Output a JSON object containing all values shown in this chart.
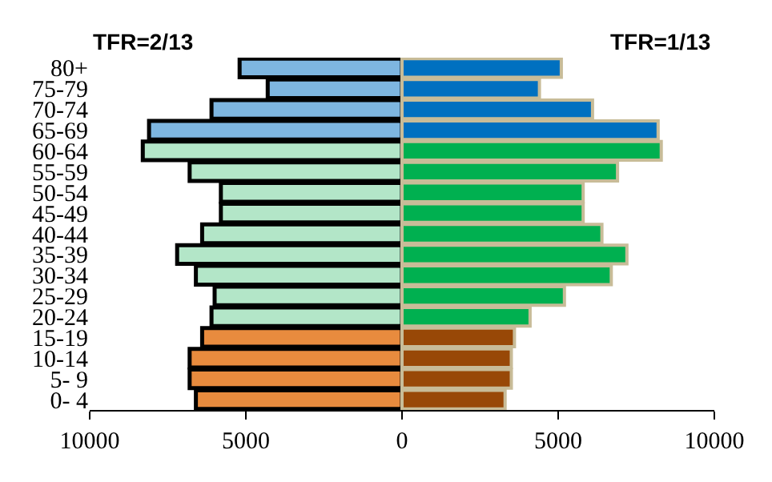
{
  "chart_data": {
    "type": "bar",
    "orientation": "horizontal",
    "stacked": true,
    "categories": [
      "80+",
      "75-79",
      "70-74",
      "65-69",
      "60-64",
      "55-59",
      "50-54",
      "45-49",
      "40-44",
      "35-39",
      "30-34",
      "25-29",
      "20-24",
      "15-19",
      "10-14",
      "5- 9",
      "0- 4"
    ],
    "series": [
      {
        "name": "TFR=2/13",
        "colors": [
          "#7eb6e0",
          "#7eb6e0",
          "#7eb6e0",
          "#7eb6e0",
          "#b3e6c8",
          "#b3e6c8",
          "#b3e6c8",
          "#b3e6c8",
          "#b3e6c8",
          "#b3e6c8",
          "#b3e6c8",
          "#b3e6c8",
          "#b3e6c8",
          "#e88b3e",
          "#e88b3e",
          "#e88b3e",
          "#e88b3e"
        ],
        "values": [
          -5200,
          -4300,
          -6100,
          -8100,
          -8300,
          -6800,
          -5800,
          -5800,
          -6400,
          -7200,
          -6600,
          -6000,
          -6100,
          -6400,
          -6800,
          -6800,
          -6600
        ]
      },
      {
        "name": "TFR=1/13",
        "colors": [
          "#0070c0",
          "#0070c0",
          "#0070c0",
          "#0070c0",
          "#00b050",
          "#00b050",
          "#00b050",
          "#00b050",
          "#00b050",
          "#00b050",
          "#00b050",
          "#00b050",
          "#00b050",
          "#984807",
          "#984807",
          "#984807",
          "#984807"
        ],
        "values": [
          5100,
          4400,
          6100,
          8200,
          8300,
          6900,
          5800,
          5800,
          6400,
          7200,
          6700,
          5200,
          4100,
          3600,
          3500,
          3500,
          3300
        ]
      }
    ],
    "xlim": [
      -10000,
      10000
    ],
    "xticks": [
      {
        "value": -10000,
        "label": "10000"
      },
      {
        "value": -5000,
        "label": "5000"
      },
      0,
      5000,
      10000
    ],
    "legend": false
  }
}
